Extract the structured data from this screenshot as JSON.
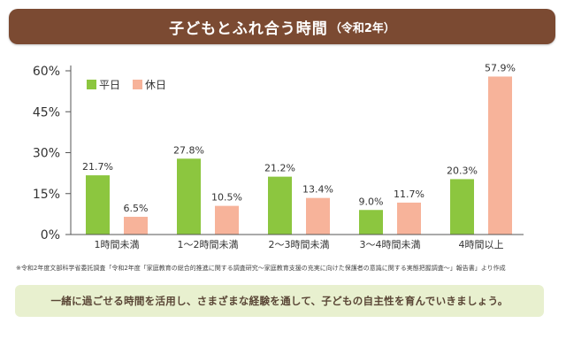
{
  "title": {
    "main": "子どもとふれ合う時間",
    "sub": "（令和2年）"
  },
  "colors": {
    "title_bg": "#7b4a32",
    "weekday": "#8cc63f",
    "holiday": "#f7b39a",
    "message_bg": "#e8f0cf"
  },
  "chart_data": {
    "type": "bar",
    "categories": [
      "1時間未満",
      "1～2時間未満",
      "2～3時間未満",
      "3～4時間未満",
      "4時間以上"
    ],
    "series": [
      {
        "name": "平日",
        "values": [
          21.7,
          27.8,
          21.2,
          9.0,
          20.3
        ],
        "labels": [
          "21.7%",
          "27.8%",
          "21.2%",
          "9.0%",
          "20.3%"
        ],
        "color": "#8cc63f"
      },
      {
        "name": "休日",
        "values": [
          6.5,
          10.5,
          13.4,
          11.7,
          57.9
        ],
        "labels": [
          "6.5%",
          "10.5%",
          "13.4%",
          "11.7%",
          "57.9%"
        ],
        "color": "#f7b39a"
      }
    ],
    "yticks": [
      0,
      15,
      30,
      45,
      60
    ],
    "ytick_labels": [
      "0%",
      "15%",
      "30%",
      "45%",
      "60%"
    ],
    "ylim": [
      0,
      60
    ],
    "legend_position": "top-left",
    "grid": false
  },
  "source_note": "※令和2年度文部科学省委託調査「令和2年度「家庭教育の総合的推進に関する調査研究～家庭教育支援の充実に向けた保護者の意識に関する実態把握調査～」報告書」より作成",
  "message": "一緒に過ごせる時間を活用し、さまざまな経験を通して、子どもの自主性を育んでいきましょう。"
}
